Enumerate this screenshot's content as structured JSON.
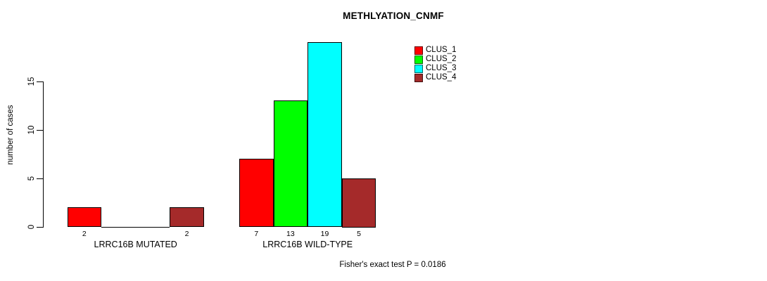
{
  "chart_data": {
    "type": "bar",
    "title": "METHLYATION_CNMF",
    "ylabel": "number of cases",
    "xlabel": "",
    "categories": [
      "LRRC16B MUTATED",
      "LRRC16B WILD-TYPE"
    ],
    "series": [
      {
        "name": "CLUS_1",
        "color": "#ff0000",
        "values": [
          2,
          7
        ]
      },
      {
        "name": "CLUS_2",
        "color": "#00ff00",
        "values": [
          0,
          13
        ]
      },
      {
        "name": "CLUS_3",
        "color": "#00ffff",
        "values": [
          0,
          19
        ]
      },
      {
        "name": "CLUS_4",
        "color": "#a52a2a",
        "values": [
          2,
          5
        ]
      }
    ],
    "yticks": [
      0,
      5,
      10,
      15
    ],
    "ylim": [
      0,
      19
    ],
    "grid": false,
    "legend_position": "top-right",
    "bar_value_labels": {
      "LRRC16B MUTATED": [
        2,
        null,
        null,
        2
      ],
      "LRRC16B WILD-TYPE": [
        7,
        13,
        19,
        5
      ]
    },
    "annotation": "Fisher's exact test P = 0.0186",
    "axis_color": "#000000",
    "bar_border_color": "#000000"
  }
}
